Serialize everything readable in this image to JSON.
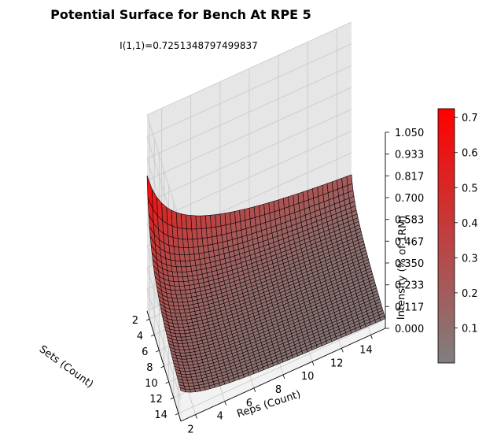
{
  "chart_data": {
    "type": "surface3d",
    "title": "Potential Surface for Bench At RPE 5",
    "subtitle": "I(1,1)=0.7251348797499837",
    "xlabel": "Sets (Count)",
    "ylabel": "Reps (Count)",
    "zlabel": "Intensity (% of 1RM)",
    "x_ticks": [
      "2",
      "4",
      "6",
      "8",
      "10",
      "12",
      "14"
    ],
    "y_ticks": [
      "2",
      "4",
      "6",
      "8",
      "10",
      "12",
      "14"
    ],
    "z_ticks": [
      "0.000",
      "0.117",
      "0.233",
      "0.350",
      "0.467",
      "0.583",
      "0.700",
      "0.817",
      "0.933",
      "1.050"
    ],
    "xlim": [
      1,
      15
    ],
    "ylim": [
      1,
      15
    ],
    "zlim": [
      0,
      1.05
    ],
    "surface_value_at_1_1": 0.7251348797499837,
    "colorbar": {
      "ticks": [
        "0.1",
        "0.2",
        "0.3",
        "0.4",
        "0.5",
        "0.6",
        "0.7"
      ],
      "range": [
        0.0,
        0.7251
      ],
      "color_low": "#7f7f7f",
      "color_high": "#ff0000"
    }
  }
}
